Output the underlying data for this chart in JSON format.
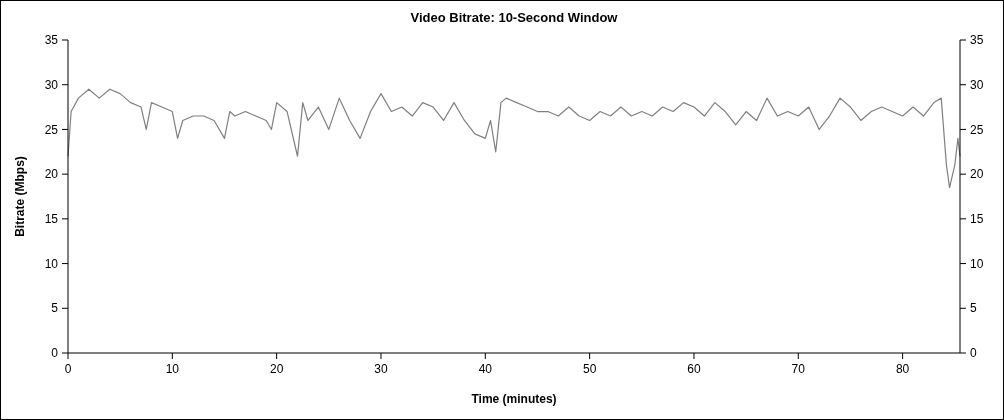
{
  "chart_data": {
    "type": "line",
    "title": "Video Bitrate: 10-Second Window",
    "xlabel": "Time (minutes)",
    "ylabel": "Bitrate (Mbps)",
    "xlim": [
      0,
      85.5
    ],
    "xticks": [
      0,
      10,
      20,
      30,
      40,
      50,
      60,
      70,
      80
    ],
    "ylim": [
      0,
      35
    ],
    "yticks": [
      0,
      5,
      10,
      15,
      20,
      25,
      30,
      35
    ],
    "y2lim": [
      0,
      35
    ],
    "y2ticks": [
      0,
      5,
      10,
      15,
      20,
      25,
      30,
      35
    ],
    "grid": false,
    "series": [
      {
        "color": "#808080",
        "x": [
          0,
          0.3,
          1,
          2,
          3,
          4,
          5,
          6,
          7,
          7.5,
          8,
          9,
          10,
          10.5,
          11,
          12,
          13,
          14,
          15,
          15.5,
          16,
          17,
          18,
          19,
          19.5,
          20,
          21,
          22,
          22.5,
          23,
          24,
          25,
          26,
          27,
          28,
          29,
          30,
          31,
          32,
          33,
          34,
          35,
          36,
          37,
          38,
          39,
          40,
          40.5,
          41,
          41.5,
          42,
          43,
          44,
          45,
          46,
          47,
          48,
          49,
          50,
          51,
          52,
          53,
          54,
          55,
          56,
          57,
          58,
          59,
          60,
          61,
          62,
          63,
          64,
          65,
          66,
          67,
          68,
          69,
          70,
          71,
          72,
          73,
          74,
          75,
          76,
          77,
          78,
          79,
          80,
          81,
          82,
          83,
          83.7,
          84.2,
          84.5,
          85,
          85.3,
          85.5
        ],
        "values": [
          22,
          27,
          28.5,
          29.5,
          28.5,
          29.5,
          29,
          28,
          27.5,
          25,
          28,
          27.5,
          27,
          24,
          26,
          26.5,
          26.5,
          26,
          24,
          27,
          26.5,
          27,
          26.5,
          26,
          25,
          28,
          27,
          22,
          28,
          26,
          27.5,
          25,
          28.5,
          26,
          24,
          27,
          29,
          27,
          27.5,
          26.5,
          28,
          27.5,
          26,
          28,
          26,
          24.5,
          24,
          26,
          22.5,
          28,
          28.5,
          28,
          27.5,
          27,
          27,
          26.5,
          27.5,
          26.5,
          26,
          27,
          26.5,
          27.5,
          26.5,
          27,
          26.5,
          27.5,
          27,
          28,
          27.5,
          26.5,
          28,
          27,
          25.5,
          27,
          26,
          28.5,
          26.5,
          27,
          26.5,
          27.5,
          25,
          26.5,
          28.5,
          27.5,
          26,
          27,
          27.5,
          27,
          26.5,
          27.5,
          26.5,
          28,
          28.5,
          21,
          18.5,
          21,
          24,
          22
        ]
      }
    ]
  }
}
